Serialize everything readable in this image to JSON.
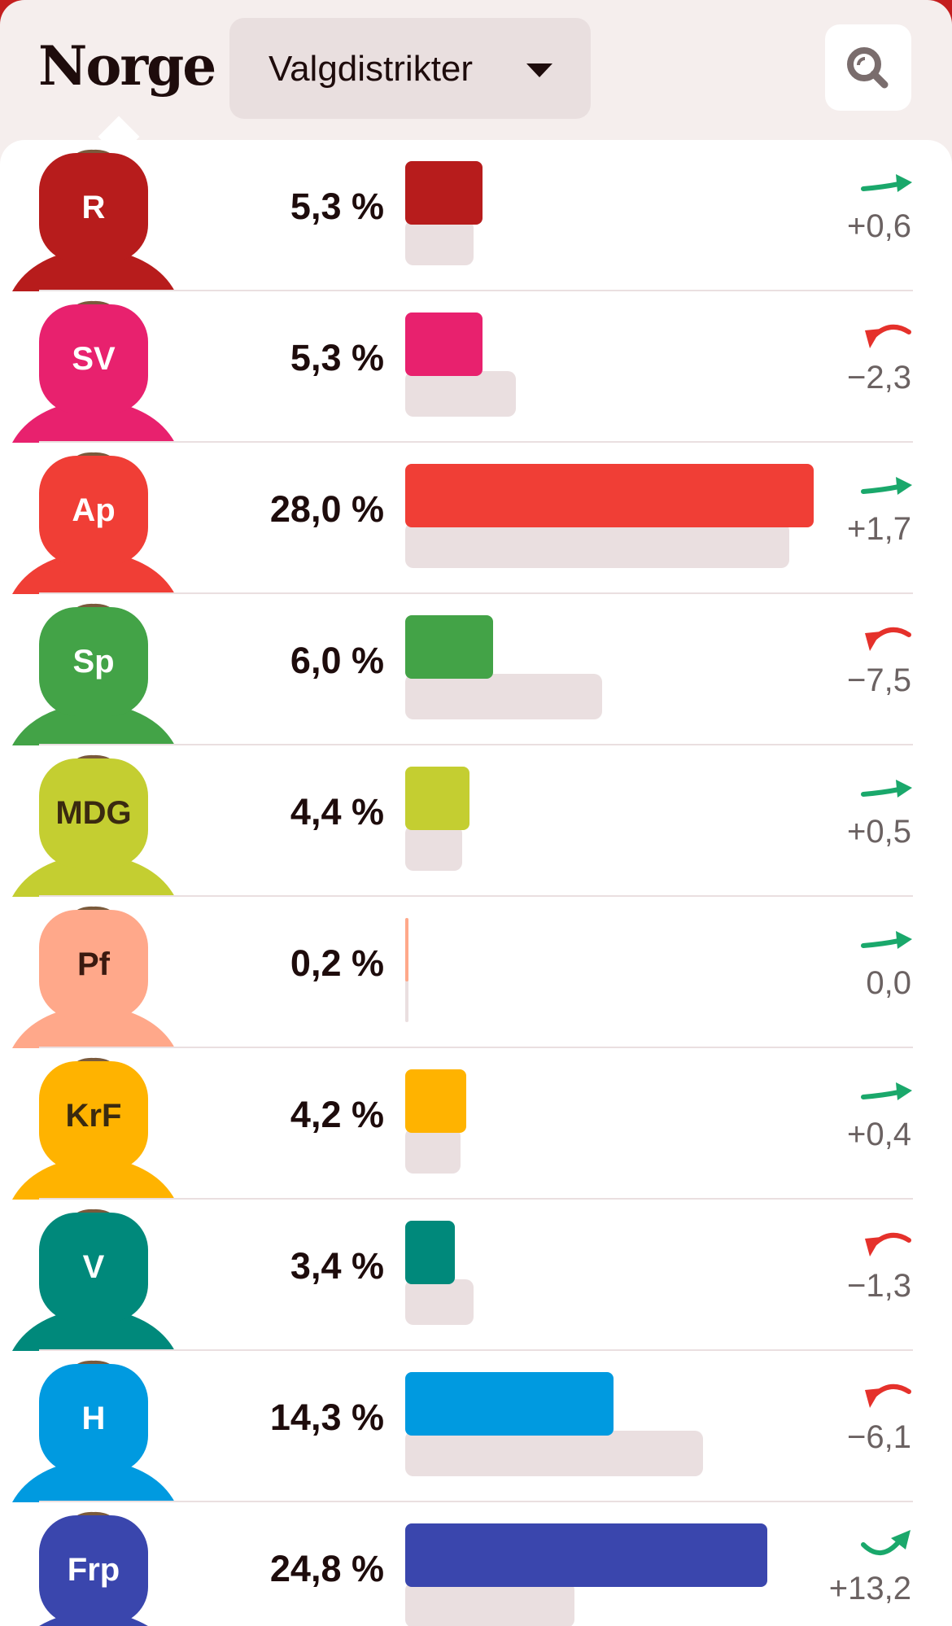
{
  "header": {
    "title": "Norge",
    "dropdown_label": "Valgdistrikter",
    "caret_icon": "caret-down-icon",
    "search_icon": "search-icon"
  },
  "colors": {
    "up": "#1aa86b",
    "down": "#e5312b",
    "previous_bar": "#eadfe0"
  },
  "chart_data": {
    "type": "bar",
    "categories": [
      "R",
      "SV",
      "Ap",
      "Sp",
      "MDG",
      "Pf",
      "KrF",
      "V",
      "H",
      "Frp"
    ],
    "series": [
      {
        "values": [
          5.3,
          5.3,
          28.0,
          6.0,
          4.4,
          0.2,
          4.2,
          3.4,
          14.3,
          24.8
        ]
      },
      {
        "values": [
          4.7,
          7.6,
          26.3,
          13.5,
          3.9,
          0.2,
          3.8,
          4.7,
          20.4,
          11.6
        ]
      }
    ],
    "value_labels": [
      "5,3 %",
      "5,3 %",
      "28,0 %",
      "6,0 %",
      "4,4 %",
      "0,2 %",
      "4,2 %",
      "3,4 %",
      "14,3 %",
      "24,8 %"
    ],
    "change_labels": [
      "+0,6",
      "−2,3",
      "+1,7",
      "−7,5",
      "+0,5",
      "0,0",
      "+0,4",
      "−1,3",
      "−6,1",
      "+13,2"
    ],
    "changes": [
      0.6,
      -2.3,
      1.7,
      -7.5,
      0.5,
      0.0,
      0.4,
      -1.3,
      -6.1,
      13.2
    ],
    "party_colors": [
      "#b71c1c",
      "#e8216e",
      "#f03e36",
      "#43a347",
      "#c4ce31",
      "#ffa88a",
      "#ffb300",
      "#00897b",
      "#009ae0",
      "#3a46ad"
    ],
    "badge_text_colors": [
      "#ffffff",
      "#ffffff",
      "#ffffff",
      "#ffffff",
      "#3a2a10",
      "#3a1a10",
      "#3a2a10",
      "#ffffff",
      "#ffffff",
      "#ffffff"
    ],
    "trend_icons": [
      "arrow-flat-up-icon",
      "arrow-curve-down-icon",
      "arrow-flat-up-icon",
      "arrow-curve-down-icon",
      "arrow-flat-up-icon",
      "arrow-flat-up-icon",
      "arrow-flat-up-icon",
      "arrow-curve-down-icon",
      "arrow-curve-down-icon",
      "arrow-curve-up-icon"
    ],
    "xlim": [
      0,
      28.0
    ]
  }
}
